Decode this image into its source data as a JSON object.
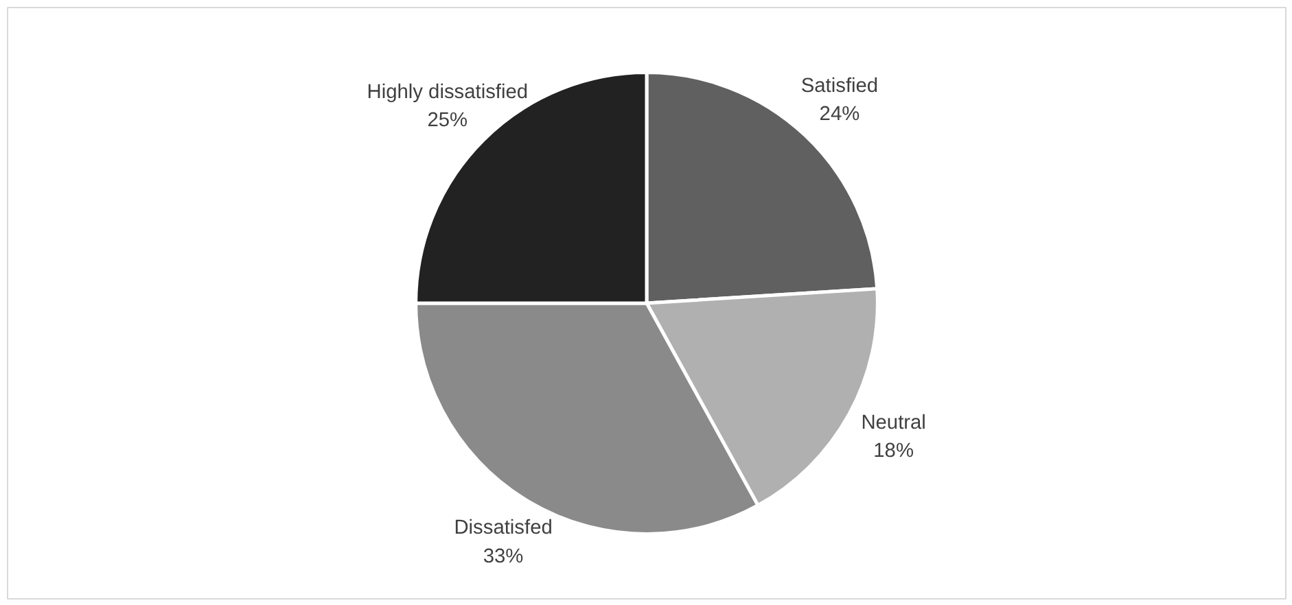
{
  "chart_data": {
    "type": "pie",
    "categories": [
      "Satisfied",
      "Neutral",
      "Dissatisfed",
      "Highly dissatisfied"
    ],
    "values": [
      24,
      18,
      33,
      25
    ],
    "value_labels": [
      "24%",
      "18%",
      "33%",
      "25%"
    ],
    "colors": [
      "#606060",
      "#b0b0b0",
      "#8a8a8a",
      "#222222"
    ],
    "legend": false
  }
}
